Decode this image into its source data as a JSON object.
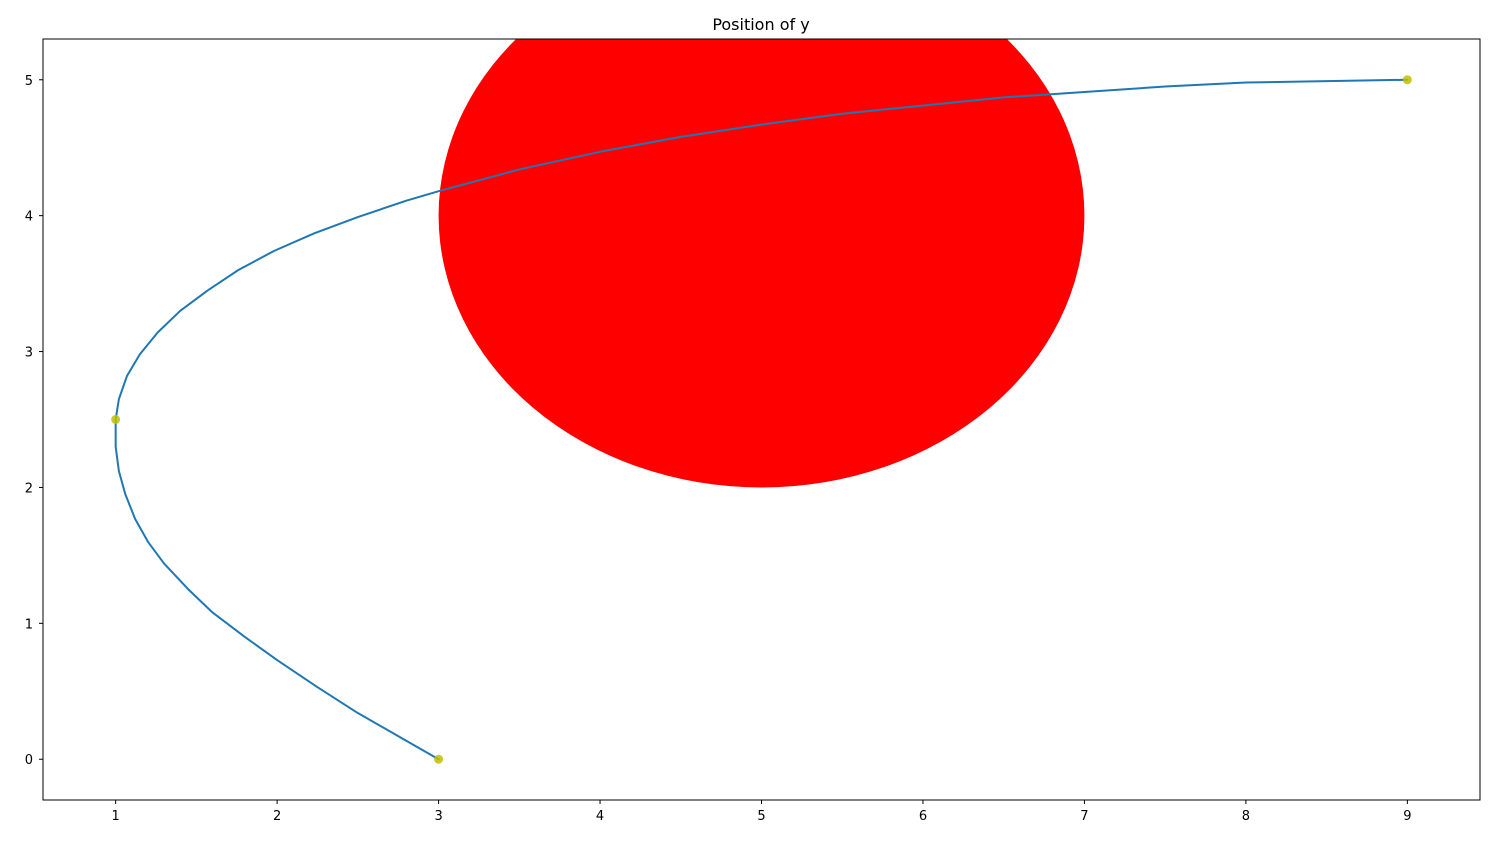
{
  "chart_data": {
    "type": "line",
    "title": "Position of y",
    "xlabel": "",
    "ylabel": "",
    "xlim": [
      0.55,
      9.45
    ],
    "ylim": [
      -0.3,
      5.3
    ],
    "xticks": [
      1,
      2,
      3,
      4,
      5,
      6,
      7,
      8,
      9
    ],
    "yticks": [
      0,
      1,
      2,
      3,
      4,
      5
    ],
    "grid": false,
    "legend": "none",
    "series": [
      {
        "color": "#1f77b4",
        "x": [
          3.0,
          2.75,
          2.5,
          2.25,
          2.0,
          1.8,
          1.6,
          1.45,
          1.3,
          1.2,
          1.12,
          1.06,
          1.02,
          1.0,
          1.0,
          1.02,
          1.07,
          1.15,
          1.26,
          1.4,
          1.57,
          1.76,
          1.98,
          2.23,
          2.5,
          2.8,
          3.0,
          3.5,
          4.0,
          4.5,
          5.0,
          5.5,
          6.0,
          6.5,
          7.0,
          7.5,
          8.0,
          8.5,
          9.0
        ],
        "y": [
          0.0,
          0.17,
          0.34,
          0.53,
          0.73,
          0.9,
          1.08,
          1.25,
          1.44,
          1.6,
          1.77,
          1.95,
          2.12,
          2.3,
          2.5,
          2.65,
          2.82,
          2.98,
          3.14,
          3.3,
          3.45,
          3.6,
          3.74,
          3.87,
          3.99,
          4.11,
          4.18,
          4.34,
          4.47,
          4.58,
          4.67,
          4.75,
          4.81,
          4.87,
          4.91,
          4.95,
          4.98,
          4.99,
          5.0
        ]
      }
    ],
    "markers": {
      "color": "#bfbf00",
      "points": [
        {
          "x": 3,
          "y": 0
        },
        {
          "x": 1,
          "y": 2.5
        },
        {
          "x": 9,
          "y": 5
        }
      ]
    },
    "obstacle": {
      "shape": "circle",
      "color": "#ff0000",
      "center": [
        5,
        4
      ],
      "radius": 2
    }
  }
}
